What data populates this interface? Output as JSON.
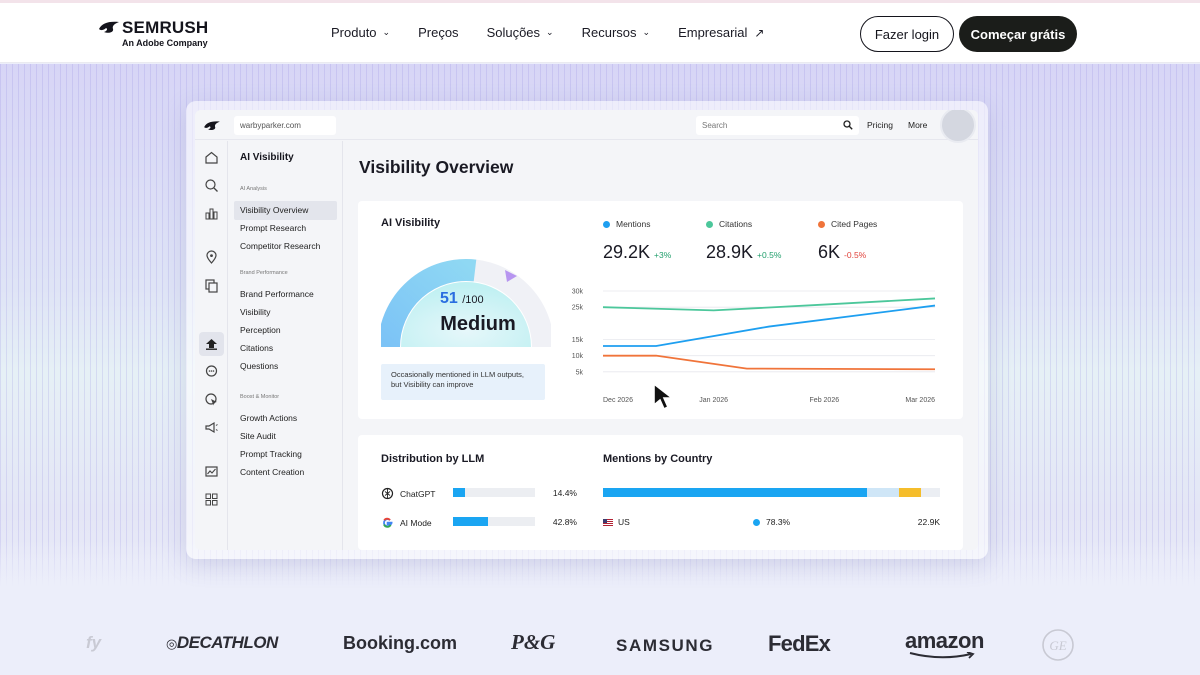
{
  "brand": {
    "name": "SEMRUSH",
    "tagline": "An Adobe Company"
  },
  "nav": {
    "items": [
      {
        "label": "Produto",
        "has_dropdown": true
      },
      {
        "label": "Preços",
        "has_dropdown": false
      },
      {
        "label": "Soluções",
        "has_dropdown": true
      },
      {
        "label": "Recursos",
        "has_dropdown": true
      },
      {
        "label": "Empresarial",
        "external": true
      }
    ],
    "chevron": "⌄",
    "external_arrow": "↗",
    "login_label": "Fazer login",
    "signup_label": "Começar grátis"
  },
  "app": {
    "domain": "warbyparker.com",
    "search_placeholder": "Search",
    "top_links": [
      "Pricing",
      "More"
    ],
    "sidebar": {
      "title": "AI Visibility",
      "sections": [
        {
          "heading": "AI Analysis",
          "items": [
            "Visibility Overview",
            "Prompt Research",
            "Competitor Research"
          ]
        },
        {
          "heading": "Brand Performance",
          "items": [
            "Brand Performance",
            "Visibility",
            "Perception",
            "Citations",
            "Questions"
          ]
        },
        {
          "heading": "Boost & Monitor",
          "items": [
            "Growth Actions",
            "Site Audit",
            "Prompt Tracking",
            "Content Creation"
          ]
        }
      ],
      "active_item": "Visibility Overview"
    },
    "page_title": "Visibility Overview",
    "ai_visibility": {
      "title": "AI Visibility",
      "score": "51",
      "score_max": "/100",
      "score_value": 51,
      "level": "Medium",
      "note": "Occasionally mentioned in LLM outputs, but Visibility can improve"
    },
    "metrics": [
      {
        "name": "Mentions",
        "value": "29.2K",
        "delta": "+3%",
        "color": "#1e9ff0",
        "delta_color": "#1f9e6b"
      },
      {
        "name": "Citations",
        "value": "28.9K",
        "delta": "+0.5%",
        "color": "#4cc79b",
        "delta_color": "#1f9e6b"
      },
      {
        "name": "Cited Pages",
        "value": "6K",
        "delta": "-0.5%",
        "color": "#f0743a",
        "delta_color": "#e0423b"
      }
    ],
    "distribution": {
      "title": "Distribution by LLM",
      "rows": [
        {
          "name": "ChatGPT",
          "pct": "14.4%",
          "value": 14.4
        },
        {
          "name": "AI Mode",
          "pct": "42.8%",
          "value": 42.8
        }
      ]
    },
    "country": {
      "title": "Mentions by Country",
      "rows": [
        {
          "name": "US",
          "pct": "78.3%",
          "count": "22.9K"
        }
      ],
      "bar_segments": [
        {
          "share": 78.3,
          "color": "#1aa5f2"
        },
        {
          "share": 9.5,
          "color": "#cfe6f7"
        },
        {
          "share": 6.5,
          "color": "#f5bd2b"
        },
        {
          "share": 5.7,
          "color": "#ebeef3"
        }
      ]
    }
  },
  "partners": [
    "fy",
    "DECATHLON",
    "Booking.com",
    "P&G",
    "SAMSUNG",
    "FedEx",
    "amazon",
    "GE"
  ],
  "chart_data": {
    "type": "line",
    "x": [
      "Dec 2026",
      "Jan 2026",
      "Feb 2026",
      "Mar 2026"
    ],
    "x_positions": [
      0,
      1,
      2,
      3
    ],
    "yticks": [
      "30k",
      "25k",
      "15k",
      "10k",
      "5k"
    ],
    "ylim": [
      0,
      30000
    ],
    "grid": true,
    "series": [
      {
        "name": "Mentions",
        "color": "#1e9ff0",
        "points": [
          [
            0,
            13000
          ],
          [
            0.48,
            13000
          ],
          [
            1.5,
            19000
          ],
          [
            3,
            25500
          ]
        ]
      },
      {
        "name": "Citations",
        "color": "#4cc79b",
        "points": [
          [
            0,
            25000
          ],
          [
            1,
            24000
          ],
          [
            2,
            25800
          ],
          [
            3,
            27700
          ]
        ]
      },
      {
        "name": "Cited Pages",
        "color": "#f0743a",
        "points": [
          [
            0,
            10000
          ],
          [
            0.48,
            10000
          ],
          [
            1.3,
            6000
          ],
          [
            3,
            5800
          ]
        ]
      }
    ]
  }
}
